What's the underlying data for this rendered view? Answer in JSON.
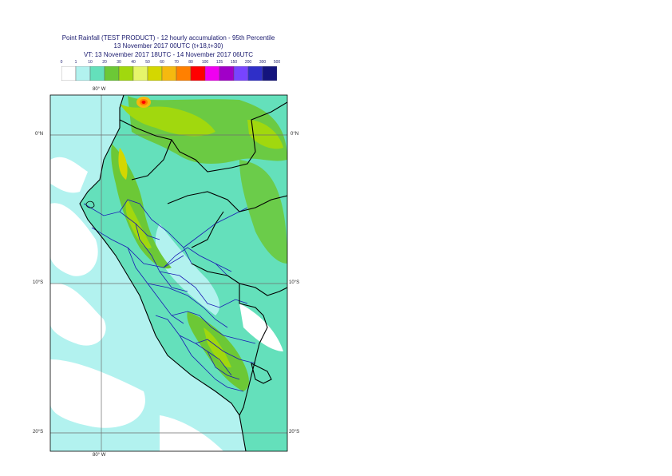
{
  "header": {
    "line1": "Point Rainfall (TEST PRODUCT) - 12 hourly accumulation - 95th Percentile",
    "line2": "13 November 2017 00UTC (t+18,t+30)",
    "line3": "VT: 13 November 2017 18UTC - 14 November 2017 06UTC"
  },
  "colorbar": {
    "labels": [
      "0",
      "1",
      "10",
      "20",
      "30",
      "40",
      "50",
      "60",
      "70",
      "80",
      "100",
      "125",
      "150",
      "200",
      "300",
      "500"
    ],
    "colors": [
      "#ffffff",
      "#b2f2ef",
      "#64e0bb",
      "#6cc836",
      "#a1d80e",
      "#e6f56a",
      "#d4d700",
      "#f5b90f",
      "#ff8000",
      "#ff0000",
      "#f000f0",
      "#a100c8",
      "#7844ff",
      "#2f2fc8",
      "#14147d"
    ]
  },
  "axes": {
    "lon_top": "80° W",
    "lon_bottom": "80° W",
    "lat_left": [
      "0°N",
      "10°S",
      "20°S"
    ],
    "lat_right": [
      "0°N",
      "10°S",
      "20°S"
    ]
  },
  "colors": {
    "ocean": "#b2f2ef",
    "land_base": "#64e0bb",
    "boundary": "#000000",
    "region_lines": "#1a1ab4"
  }
}
